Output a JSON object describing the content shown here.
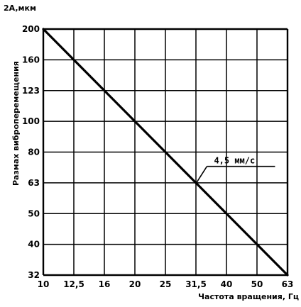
{
  "chart_data": {
    "type": "line",
    "ylabel_top": "2A,мкм",
    "ylabel": "Размах виброперемещения",
    "xlabel": "Частота вращения, Гц",
    "x_ticks": [
      "10",
      "12,5",
      "16",
      "20",
      "25",
      "31,5",
      "40",
      "50",
      "63"
    ],
    "y_ticks": [
      "200",
      "160",
      "123",
      "100",
      "80",
      "63",
      "50",
      "40",
      "32"
    ],
    "xlim": [
      "10",
      "63"
    ],
    "ylim": [
      "32",
      "200"
    ],
    "x_scale": "log",
    "y_scale": "log",
    "grid": true,
    "series": [
      {
        "x": [
          10,
          63
        ],
        "y": [
          200,
          32
        ]
      }
    ],
    "annotations": [
      {
        "text": "4,5 мм/с",
        "x": 31.5,
        "y": 63
      }
    ]
  }
}
